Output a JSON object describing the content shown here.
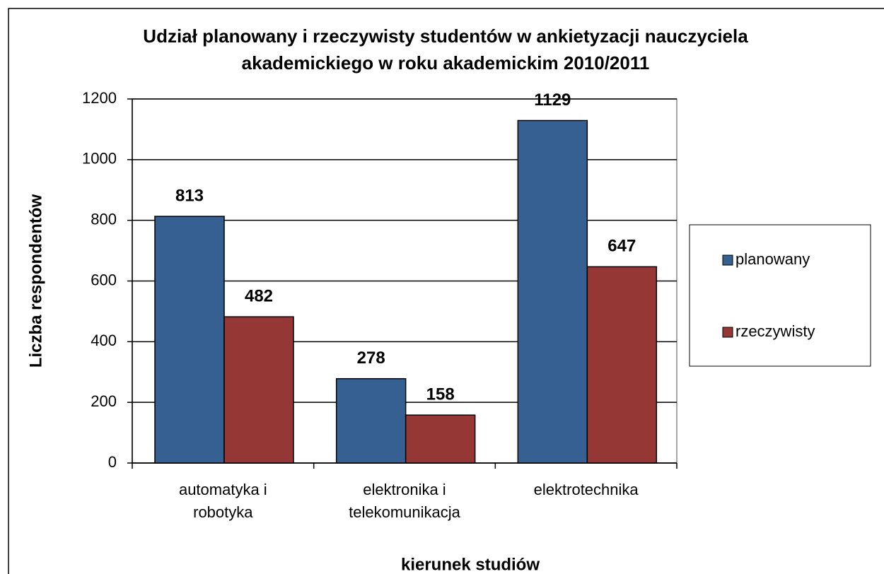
{
  "chart_data": {
    "type": "bar",
    "title": "Udział planowany i rzeczywisty studentów w ankietyzacji nauczyciela akademickiego w roku akademickim 2010/2011",
    "x_label": "kierunek studiów",
    "y_label": "Liczba respondentów",
    "categories": [
      "automatyka i robotyka",
      "elektronika i telekomunikacja",
      "elektrotechnika"
    ],
    "series": [
      {
        "name": "planowany",
        "color": "#376092",
        "values": [
          813,
          278,
          1129
        ]
      },
      {
        "name": "rzeczywisty",
        "color": "#953735",
        "values": [
          482,
          158,
          647
        ]
      }
    ],
    "ylim": [
      0,
      1200
    ],
    "yticks": [
      0,
      200,
      400,
      600,
      800,
      1000,
      1200
    ],
    "grid": true,
    "legend": "right"
  }
}
